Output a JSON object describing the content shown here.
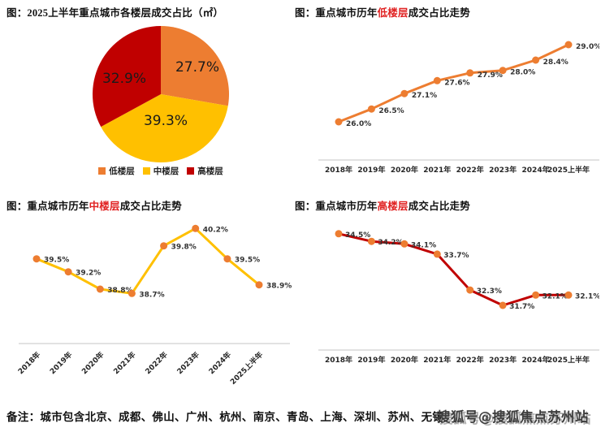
{
  "colors": {
    "orange": "#ED7D31",
    "yellow": "#FFC000",
    "red": "#C00000",
    "title_keyword": "#E02020",
    "axis_line": "#D9D9D9",
    "label_text": "#333333"
  },
  "chart_data": [
    {
      "id": "pie",
      "type": "pie",
      "title": "图：2025上半年重点城市各楼层成交占比（㎡）",
      "labels": [
        "低楼层",
        "中楼层",
        "高楼层"
      ],
      "values": [
        27.7,
        39.3,
        32.9
      ],
      "value_labels": [
        "27.7%",
        "39.3%",
        "32.9%"
      ],
      "colors": [
        "#ED7D31",
        "#FFC000",
        "#C00000"
      ],
      "legend_position": "bottom",
      "start_angle_deg": 0,
      "direction": "clockwise"
    },
    {
      "id": "low",
      "type": "line",
      "title_prefix": "图：重点城市历年",
      "title_keyword": "低楼层",
      "title_suffix": "成交占比走势",
      "categories": [
        "2018年",
        "2019年",
        "2020年",
        "2021年",
        "2022年",
        "2023年",
        "2024年",
        "2025上半年"
      ],
      "values": [
        26.0,
        26.5,
        27.1,
        27.6,
        27.9,
        28.0,
        28.4,
        29.0
      ],
      "value_labels": [
        "26.0%",
        "26.5%",
        "27.1%",
        "27.6%",
        "27.9%",
        "28.0%",
        "28.4%",
        "29.0%"
      ],
      "line_color": "#ED7D31",
      "marker_color": "#ED7D31",
      "ylim": [
        25.0,
        29.3
      ],
      "grid": false,
      "tick_rotation": 0
    },
    {
      "id": "mid",
      "type": "line",
      "title_prefix": "图：重点城市历年",
      "title_keyword": "中楼层",
      "title_suffix": "成交占比走势",
      "categories": [
        "2018年",
        "2019年",
        "2020年",
        "2021年",
        "2022年",
        "2023年",
        "2024年",
        "2025上半年"
      ],
      "values": [
        39.5,
        39.2,
        38.8,
        38.7,
        39.8,
        40.2,
        39.5,
        38.9
      ],
      "value_labels": [
        "39.5%",
        "39.2%",
        "38.8%",
        "38.7%",
        "39.8%",
        "40.2%",
        "39.5%",
        "38.9%"
      ],
      "line_color": "#FFC000",
      "marker_color": "#ED7D31",
      "ylim": [
        37.6,
        40.6
      ],
      "grid": false,
      "tick_rotation": -45
    },
    {
      "id": "high",
      "type": "line",
      "title_prefix": "图：重点城市历年",
      "title_keyword": "高楼层",
      "title_suffix": "成交占比走势",
      "categories": [
        "2018年",
        "2019年",
        "2020年",
        "2021年",
        "2022年",
        "2023年",
        "2024年",
        "2025上半年"
      ],
      "values": [
        34.5,
        34.2,
        34.1,
        33.7,
        32.3,
        31.7,
        32.1,
        32.1
      ],
      "value_labels": [
        "34.5%",
        "34.2%",
        "34.1%",
        "33.7%",
        "32.3%",
        "31.7%",
        "32.1%",
        "32.1%"
      ],
      "line_color": "#C00000",
      "marker_color": "#ED7D31",
      "ylim": [
        31.0,
        35.0
      ],
      "grid": false,
      "tick_rotation": 0
    }
  ],
  "note": {
    "text": "备注：城市包含北京、成都、佛山、广州、杭州、南京、青岛、上海、深圳、苏州、无锡"
  },
  "watermark": {
    "text": "搜狐号@搜狐焦点苏州站"
  }
}
